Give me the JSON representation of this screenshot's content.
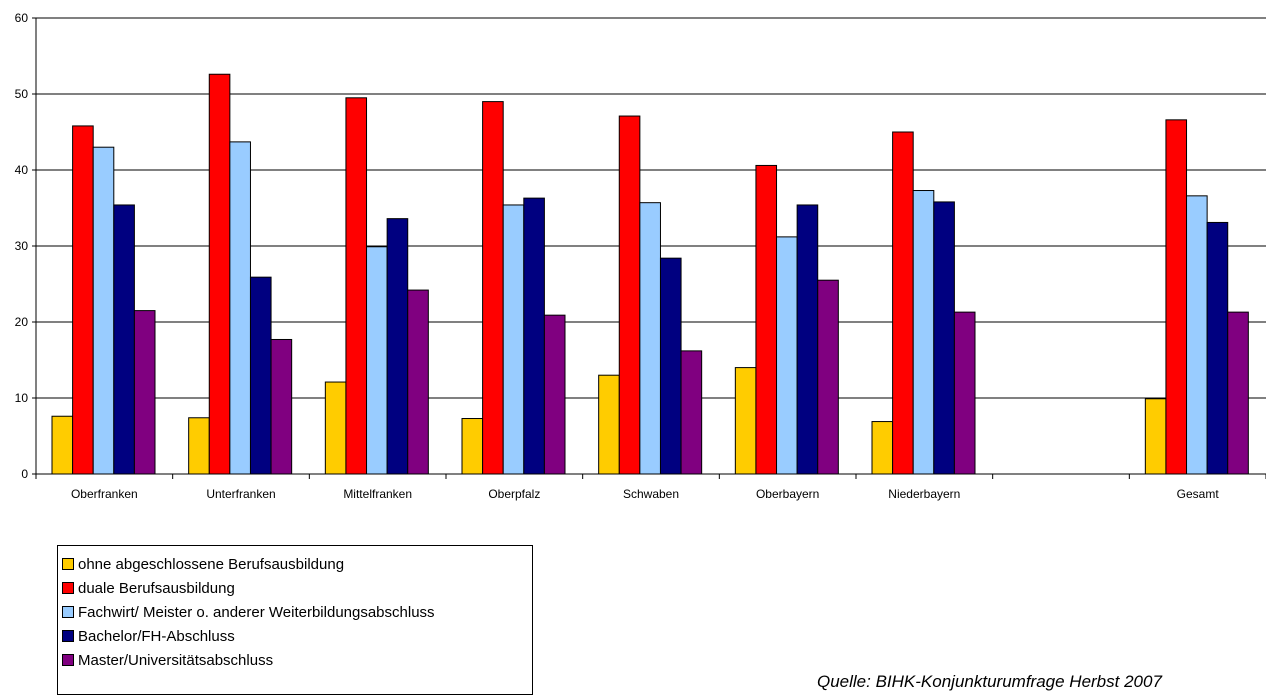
{
  "chart_data": {
    "type": "bar",
    "categories": [
      "Oberfranken",
      "Unterfranken",
      "Mittelfranken",
      "Oberpfalz",
      "Schwaben",
      "Oberbayern",
      "Niederbayern",
      "",
      "Gesamt"
    ],
    "series": [
      {
        "name": "ohne abgeschlossene Berufsausbildung",
        "color": "#ffcc00",
        "values": [
          7.6,
          7.4,
          12.1,
          7.3,
          13.0,
          14.0,
          6.9,
          null,
          9.9
        ]
      },
      {
        "name": "duale Berufsausbildung",
        "color": "#ff0000",
        "values": [
          45.8,
          52.6,
          49.5,
          49.0,
          47.1,
          40.6,
          45.0,
          null,
          46.6
        ]
      },
      {
        "name": "Fachwirt/ Meister o. anderer Weiterbildungsabschluss",
        "color": "#99ccff",
        "values": [
          43.0,
          43.7,
          29.9,
          35.4,
          35.7,
          31.2,
          37.3,
          null,
          36.6
        ]
      },
      {
        "name": "Bachelor/FH-Abschluss",
        "color": "#000080",
        "values": [
          35.4,
          25.9,
          33.6,
          36.3,
          28.4,
          35.4,
          35.8,
          null,
          33.1
        ]
      },
      {
        "name": "Master/Universitätsabschluss",
        "color": "#800080",
        "values": [
          21.5,
          17.7,
          24.2,
          20.9,
          16.2,
          25.5,
          21.3,
          null,
          21.3
        ]
      }
    ],
    "ylim": [
      0,
      60
    ],
    "yticks": [
      "0",
      "10",
      "20",
      "30",
      "40",
      "50",
      "60"
    ],
    "grid": true,
    "legend_position": "bottom-left"
  },
  "source_note": "Quelle: BIHK-Konjunkturumfrage Herbst 2007"
}
